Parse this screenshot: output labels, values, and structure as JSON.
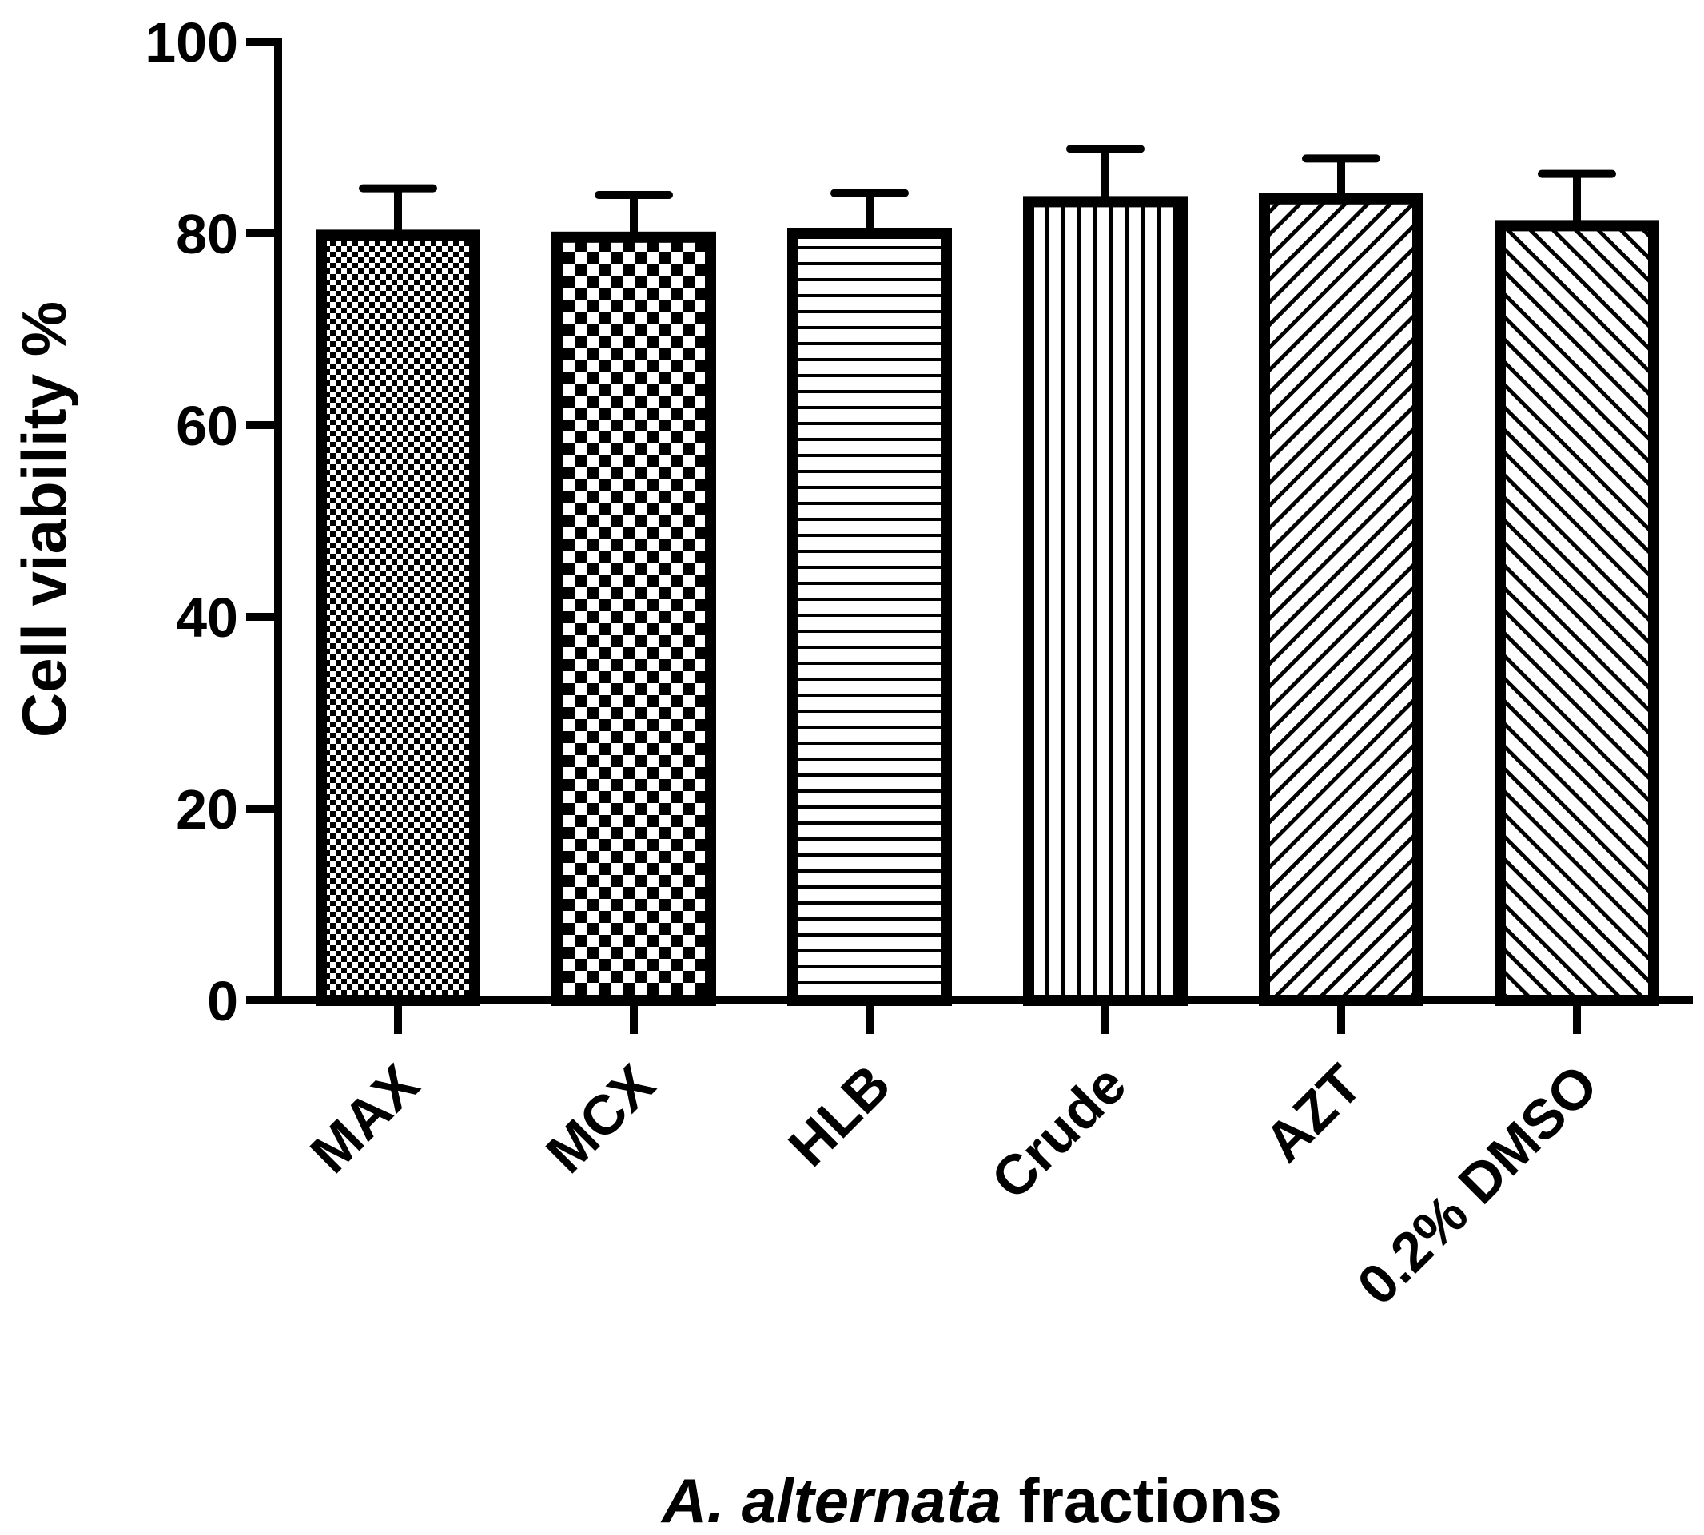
{
  "chart_data": {
    "type": "bar",
    "title": "",
    "xlabel_italic": "A. alternata",
    "xlabel_rest": " fractions",
    "ylabel": "Cell viability %",
    "ylim": [
      0,
      100
    ],
    "yticks": [
      0,
      20,
      40,
      60,
      80,
      100
    ],
    "categories": [
      "MAX",
      "MCX",
      "HLB",
      "Crude",
      "AZT",
      "0.2% DMSO"
    ],
    "values": [
      79.8,
      79.6,
      80.0,
      83.3,
      83.6,
      80.8
    ],
    "error_upper": [
      84.7,
      84.0,
      84.2,
      88.8,
      87.8,
      86.2
    ],
    "patterns": [
      "fine-checker",
      "coarse-checker",
      "horizontal-lines",
      "vertical-lines",
      "diagonal-up",
      "diagonal-down"
    ],
    "grid": false,
    "legend": "none",
    "colors": {
      "bar_edge": "#000000",
      "bar_fill": "#ffffff",
      "pattern": "#000000"
    }
  }
}
